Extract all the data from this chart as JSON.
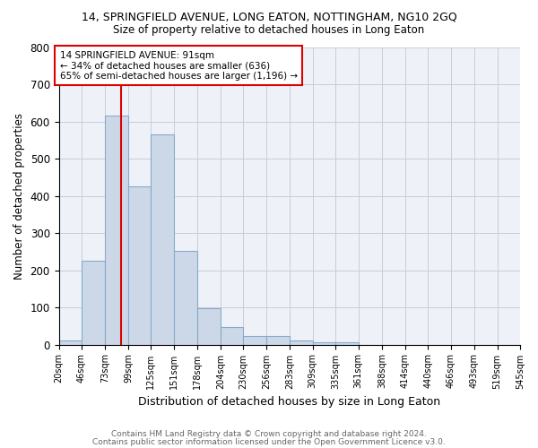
{
  "title": "14, SPRINGFIELD AVENUE, LONG EATON, NOTTINGHAM, NG10 2GQ",
  "subtitle": "Size of property relative to detached houses in Long Eaton",
  "xlabel": "Distribution of detached houses by size in Long Eaton",
  "ylabel": "Number of detached properties",
  "bar_color": "#cddaе8",
  "bar_edge_color": "#7aaаcc",
  "bins": [
    20,
    46,
    73,
    99,
    125,
    151,
    178,
    204,
    230,
    256,
    283,
    309,
    335,
    361,
    388,
    414,
    440,
    466,
    493,
    519,
    545
  ],
  "counts": [
    10,
    225,
    615,
    425,
    565,
    252,
    97,
    47,
    22,
    22,
    10,
    5,
    7,
    0,
    0,
    0,
    0,
    0,
    0,
    0
  ],
  "property_size": 91,
  "red_line_color": "#dd0000",
  "annotation_text": "14 SPRINGFIELD AVENUE: 91sqm\n← 34% of detached houses are smaller (636)\n65% of semi-detached houses are larger (1,196) →",
  "ylim": [
    0,
    800
  ],
  "yticks": [
    0,
    100,
    200,
    300,
    400,
    500,
    600,
    700,
    800
  ],
  "footer1": "Contains HM Land Registry data © Crown copyright and database right 2024.",
  "footer2": "Contains public sector information licensed under the Open Government Licence v3.0.",
  "bg_color": "#eef2f8",
  "grid_color": "#c8ccd8"
}
